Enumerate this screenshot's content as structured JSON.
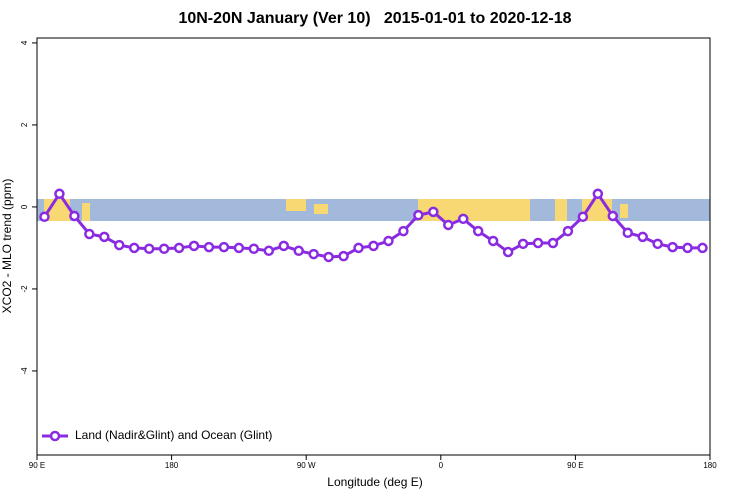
{
  "chart_data": {
    "type": "line",
    "title": "10N-20N January (Ver 10)   2015-01-01 to 2020-12-18",
    "x_label": "Longitude (deg E)",
    "y_label": "XCO2 - MLO trend (ppm)",
    "x": [
      95,
      105,
      115,
      125,
      135,
      145,
      155,
      165,
      175,
      185,
      195,
      205,
      215,
      225,
      235,
      245,
      255,
      265,
      275,
      285,
      295,
      305,
      315,
      325,
      335,
      345,
      355,
      365,
      375,
      385,
      395,
      405,
      415,
      425,
      435,
      445,
      455,
      465,
      475,
      485,
      495,
      505,
      515,
      525,
      535
    ],
    "series": [
      {
        "name": "Land (Nadir&Glint) and Ocean (Glint)",
        "color": "#8a2be2",
        "values": [
          -0.24,
          0.32,
          -0.22,
          -0.66,
          -0.73,
          -0.93,
          -1.0,
          -1.02,
          -1.02,
          -1.0,
          -0.95,
          -0.98,
          -0.98,
          -1.0,
          -1.02,
          -1.07,
          -0.95,
          -1.07,
          -1.15,
          -1.22,
          -1.2,
          -1.0,
          -0.95,
          -0.83,
          -0.59,
          -0.2,
          -0.12,
          -0.44,
          -0.29,
          -0.59,
          -0.83,
          -1.1,
          -0.9,
          -0.88,
          -0.88,
          -0.59,
          -0.24,
          0.32,
          -0.22,
          -0.63,
          -0.73,
          -0.9,
          -0.98,
          -1.0,
          -1.0
        ]
      }
    ],
    "xlim": [
      90,
      540
    ],
    "xticks": [
      {
        "value": 90,
        "label": "90 E"
      },
      {
        "value": 180,
        "label": "180"
      },
      {
        "value": 270,
        "label": "90 W"
      },
      {
        "value": 360,
        "label": "0"
      },
      {
        "value": 450,
        "label": "90 E"
      },
      {
        "value": 540,
        "label": "180"
      }
    ],
    "ylim": [
      -6.05,
      4.12
    ],
    "yticks": [
      -4,
      -2,
      0,
      2,
      4
    ],
    "legend": "bottom-left"
  }
}
